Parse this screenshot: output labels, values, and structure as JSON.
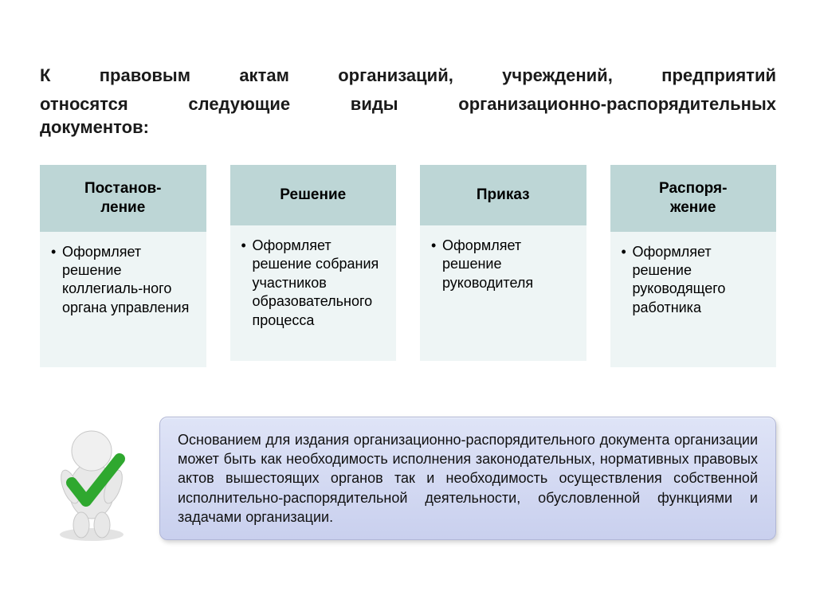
{
  "title": {
    "line1": "К правовым актам организаций, учреждений, предприятий",
    "line2": "относятся следующие виды организационно-распорядительных",
    "line3": "документов:"
  },
  "cards": [
    {
      "header": "Постанов-\nление",
      "body": "Оформляет решение коллегиаль-ного органа управления"
    },
    {
      "header": "Решение",
      "body": "Оформляет решение собрания участников образовательного процесса"
    },
    {
      "header": "Приказ",
      "body": "Оформляет решение руководителя"
    },
    {
      "header": "Распоря-\nжение",
      "body": "Оформляет решение руководящего работника"
    }
  ],
  "note": "Основанием для издания организационно-распорядительного документа организации может быть как необходимость исполнения законодательных, нормативных правовых актов вышестоящих органов так и необходимость осуществления собственной исполнительно-распорядительной деятельности, обусловленной функциями и задачами организации.",
  "styling": {
    "card_header_bg": "#bdd6d6",
    "card_body_bg": "#eef5f5",
    "note_gradient_top": "#dfe4f7",
    "note_gradient_bottom": "#c9d0ee",
    "note_border": "#b0b6d6",
    "title_fontsize": 22,
    "card_header_fontsize": 19,
    "card_body_fontsize": 18,
    "note_fontsize": 18,
    "figure_checkmark_color": "#2fa82f",
    "figure_body_color": "#e8e8e8"
  }
}
